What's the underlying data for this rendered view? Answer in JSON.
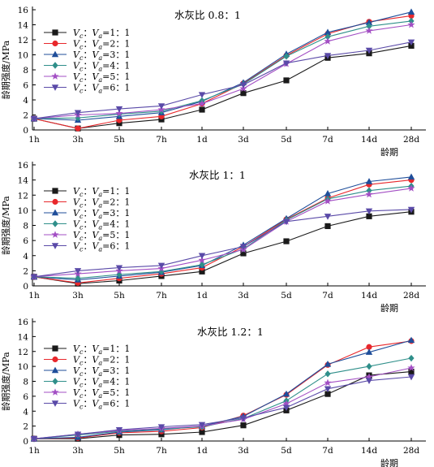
{
  "chart_data": [
    {
      "type": "line",
      "title": "水灰比 0.8：1",
      "xlabel": "龄期",
      "ylabel": "龄期强度/MPa",
      "categories": [
        "1h",
        "3h",
        "5h",
        "7h",
        "1d",
        "3d",
        "5d",
        "7d",
        "14d",
        "28d"
      ],
      "ylim": [
        0,
        16
      ],
      "yticks": [
        0,
        2,
        4,
        6,
        8,
        10,
        12,
        14,
        16
      ],
      "legend_position": "top-left",
      "series": [
        {
          "name": "Vc：Va=1：1",
          "values": [
            1.5,
            0.2,
            0.9,
            1.4,
            2.7,
            4.9,
            6.6,
            9.6,
            10.2,
            11.2
          ]
        },
        {
          "name": "Vc：Va=2：1",
          "values": [
            1.5,
            0.2,
            1.3,
            1.8,
            3.5,
            6.2,
            9.9,
            12.8,
            14.4,
            15.2
          ]
        },
        {
          "name": "Vc：Va=3：1",
          "values": [
            1.5,
            1.3,
            1.8,
            2.3,
            3.8,
            6.3,
            10.1,
            13.0,
            14.3,
            15.7
          ]
        },
        {
          "name": "Vc：Va=4：1",
          "values": [
            1.5,
            1.6,
            2.1,
            2.5,
            3.9,
            6.1,
            9.8,
            12.4,
            13.8,
            14.5
          ]
        },
        {
          "name": "Vc：Va=5：1",
          "values": [
            1.5,
            2.0,
            2.2,
            2.7,
            3.5,
            5.5,
            8.8,
            11.8,
            13.2,
            14.0
          ]
        },
        {
          "name": "Vc：Va=6：1",
          "values": [
            1.5,
            2.3,
            2.8,
            3.2,
            4.7,
            6.0,
            8.9,
            9.9,
            10.6,
            11.7
          ]
        }
      ]
    },
    {
      "type": "line",
      "title": "水灰比 1：1",
      "xlabel": "龄期",
      "ylabel": "龄期强度/MPa",
      "categories": [
        "1h",
        "3h",
        "5h",
        "7h",
        "1d",
        "3d",
        "5d",
        "7d",
        "14d",
        "28d"
      ],
      "ylim": [
        0,
        16
      ],
      "yticks": [
        0,
        2,
        4,
        6,
        8,
        10,
        12,
        14,
        16
      ],
      "legend_position": "top-left",
      "series": [
        {
          "name": "Vc：Va=1：1",
          "values": [
            1.2,
            0.3,
            0.7,
            1.3,
            1.9,
            4.3,
            5.9,
            7.9,
            9.2,
            9.8
          ]
        },
        {
          "name": "Vc：Va=2：1",
          "values": [
            1.2,
            0.4,
            1.0,
            1.6,
            2.4,
            5.2,
            8.8,
            11.6,
            13.4,
            14.0
          ]
        },
        {
          "name": "Vc：Va=3：1",
          "values": [
            1.2,
            0.8,
            1.3,
            1.8,
            2.7,
            5.4,
            8.9,
            12.2,
            13.8,
            14.4
          ]
        },
        {
          "name": "Vc：Va=4：1",
          "values": [
            1.2,
            1.0,
            1.5,
            1.9,
            2.8,
            4.9,
            8.7,
            11.5,
            12.6,
            13.2
          ]
        },
        {
          "name": "Vc：Va=5：1",
          "values": [
            1.2,
            1.6,
            2.0,
            2.3,
            3.4,
            4.8,
            8.5,
            11.2,
            12.1,
            12.9
          ]
        },
        {
          "name": "Vc：Va=6：1",
          "values": [
            1.2,
            2.0,
            2.4,
            2.7,
            4.0,
            5.2,
            8.5,
            9.2,
            9.9,
            10.1
          ]
        }
      ]
    },
    {
      "type": "line",
      "title": "水灰比 1.2：1",
      "xlabel": "龄期",
      "ylabel": "龄期强度/MPa",
      "categories": [
        "1h",
        "3h",
        "5h",
        "7h",
        "1d",
        "3d",
        "5d",
        "7d",
        "14d",
        "28d"
      ],
      "ylim": [
        0,
        16
      ],
      "yticks": [
        0,
        2,
        4,
        6,
        8,
        10,
        12,
        14,
        16
      ],
      "legend_position": "top-left",
      "series": [
        {
          "name": "Vc：Va=1：1",
          "values": [
            0.3,
            0.3,
            0.8,
            0.9,
            1.2,
            2.1,
            4.1,
            6.3,
            8.8,
            9.3
          ]
        },
        {
          "name": "Vc：Va=2：1",
          "values": [
            0.3,
            0.4,
            1.1,
            1.3,
            1.8,
            3.4,
            6.2,
            10.2,
            12.6,
            13.4
          ]
        },
        {
          "name": "Vc：Va=3：1",
          "values": [
            0.3,
            0.5,
            1.2,
            1.5,
            2.0,
            3.3,
            6.3,
            10.3,
            11.9,
            13.5
          ]
        },
        {
          "name": "Vc：Va=4：1",
          "values": [
            0.3,
            0.8,
            1.3,
            1.6,
            1.9,
            3.0,
            5.4,
            9.0,
            10.0,
            11.1
          ]
        },
        {
          "name": "Vc：Va=5：1",
          "values": [
            0.3,
            0.9,
            1.4,
            1.7,
            2.0,
            2.9,
            5.0,
            7.8,
            8.6,
            9.8
          ]
        },
        {
          "name": "Vc：Va=6：1",
          "values": [
            0.3,
            0.9,
            1.5,
            1.9,
            2.2,
            3.1,
            4.5,
            7.0,
            8.1,
            8.6
          ]
        }
      ]
    }
  ],
  "styles": {
    "series_colors": [
      "#1a1a1a",
      "#e8282c",
      "#1f4e9a",
      "#2f8f8a",
      "#a34fc4",
      "#5a4aa8"
    ],
    "markers": [
      "square",
      "circle",
      "triangle-up",
      "diamond",
      "star",
      "triangle-down"
    ],
    "legend_prefix": "Vc：Va=",
    "legend_ratio": [
      "1：1",
      "2：1",
      "3：1",
      "4：1",
      "5：1",
      "6：1"
    ]
  }
}
